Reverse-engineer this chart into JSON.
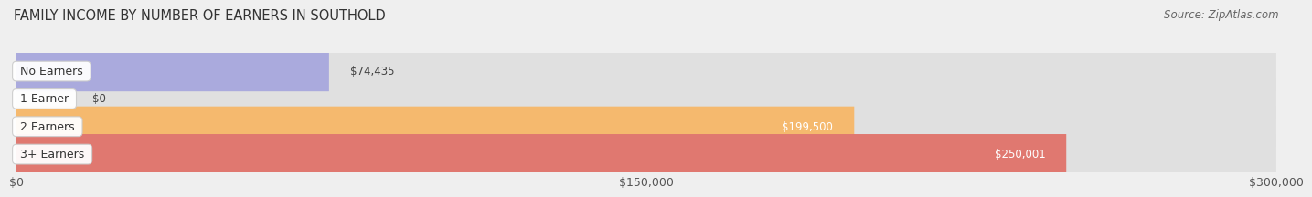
{
  "title": "FAMILY INCOME BY NUMBER OF EARNERS IN SOUTHOLD",
  "source": "Source: ZipAtlas.com",
  "categories": [
    "No Earners",
    "1 Earner",
    "2 Earners",
    "3+ Earners"
  ],
  "values": [
    74435,
    0,
    199500,
    250001
  ],
  "labels": [
    "$74,435",
    "$0",
    "$199,500",
    "$250,001"
  ],
  "bar_colors": [
    "#aaaadd",
    "#f4a0b8",
    "#f5b96e",
    "#e07870"
  ],
  "label_colors": [
    "#444444",
    "#444444",
    "#ffffff",
    "#ffffff"
  ],
  "background_color": "#efefef",
  "bar_bg_color": "#e0e0e0",
  "xlim": [
    0,
    300000
  ],
  "xtick_values": [
    0,
    150000,
    300000
  ],
  "xtick_labels": [
    "$0",
    "$150,000",
    "$300,000"
  ],
  "title_fontsize": 10.5,
  "source_fontsize": 8.5,
  "bar_height": 0.52,
  "label_fontsize": 8.5,
  "category_fontsize": 9
}
